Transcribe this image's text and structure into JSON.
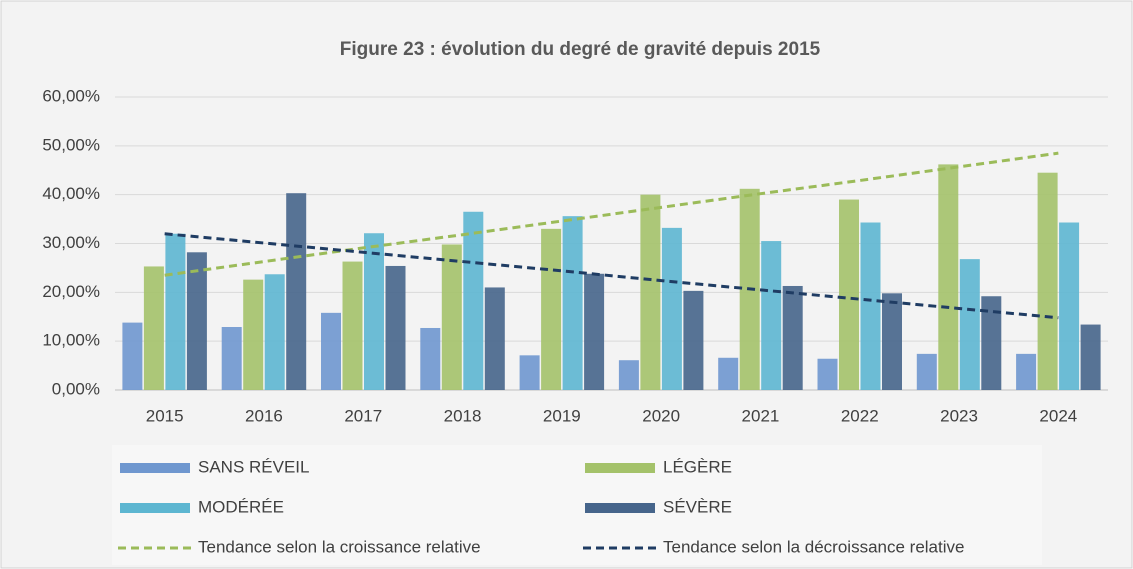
{
  "chart_data": {
    "type": "bar",
    "title": "Figure 23 : évolution du degré de gravité depuis 2015",
    "categories": [
      "2015",
      "2016",
      "2017",
      "2018",
      "2019",
      "2020",
      "2021",
      "2022",
      "2023",
      "2024"
    ],
    "series": [
      {
        "name": "SANS RÉVEIL",
        "type": "bar",
        "color": "#6f97cf",
        "values": [
          13.8,
          12.9,
          15.8,
          12.7,
          7.1,
          6.1,
          6.6,
          6.4,
          7.4,
          7.4
        ]
      },
      {
        "name": "LÉGÈRE",
        "type": "bar",
        "color": "#a4c26a",
        "values": [
          25.3,
          22.6,
          26.3,
          29.8,
          33.0,
          40.0,
          41.2,
          39.0,
          46.2,
          44.5
        ]
      },
      {
        "name": "MODÉRÉE",
        "type": "bar",
        "color": "#5db6d1",
        "values": [
          32.0,
          23.7,
          32.1,
          36.5,
          35.6,
          33.2,
          30.5,
          34.3,
          26.8,
          34.3
        ]
      },
      {
        "name": "SÉVÈRE",
        "type": "bar",
        "color": "#46658b",
        "values": [
          28.2,
          40.3,
          25.4,
          21.0,
          23.8,
          20.3,
          21.3,
          19.8,
          19.2,
          13.4
        ]
      },
      {
        "name": "Tendance selon la croissance relative",
        "type": "line",
        "dashed": true,
        "color": "#9bbb59",
        "values": [
          23.5,
          26.3,
          29.1,
          31.8,
          34.6,
          37.4,
          40.2,
          42.9,
          45.7,
          48.5
        ]
      },
      {
        "name": "Tendance selon la décroissance relative",
        "type": "line",
        "dashed": true,
        "color": "#1f3c63",
        "values": [
          32.0,
          30.1,
          28.2,
          26.3,
          24.4,
          22.4,
          20.5,
          18.6,
          16.7,
          14.8
        ]
      }
    ],
    "ylim": [
      0,
      60
    ],
    "yticks": [
      {
        "value": 0,
        "label": "0,00%"
      },
      {
        "value": 10,
        "label": "10,00%"
      },
      {
        "value": 20,
        "label": "20,00%"
      },
      {
        "value": 30,
        "label": "30,00%"
      },
      {
        "value": 40,
        "label": "40,00%"
      },
      {
        "value": 50,
        "label": "50,00%"
      },
      {
        "value": 60,
        "label": "60,00%"
      }
    ],
    "grid": true,
    "legend": "bottom"
  }
}
